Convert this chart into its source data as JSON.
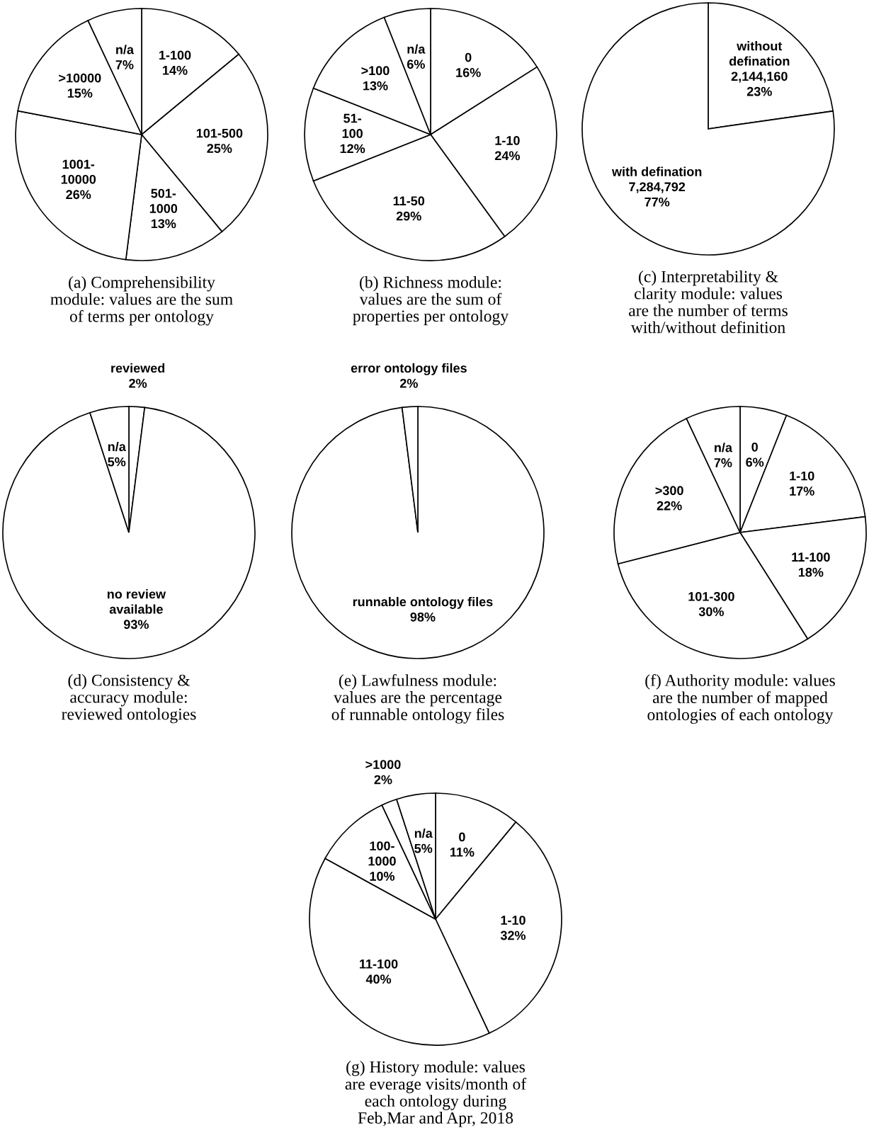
{
  "chart_data": [
    {
      "type": "pie",
      "title": "(a) Comprehensibility\nmodule: values are the sum\nof terms per ontology",
      "categories": [
        "1-100",
        "101-500",
        "501-\n1000",
        "1001-\n10000",
        ">10000",
        "n/a"
      ],
      "values": [
        14,
        25,
        13,
        26,
        15,
        7
      ],
      "value_labels": [
        "14%",
        "25%",
        "13%",
        "26%",
        "15%",
        "7%"
      ],
      "colors": [
        "#ffffff",
        "#ffffff",
        "#ffffff",
        "#ffffff",
        "#ffffff",
        "#ffffff"
      ]
    },
    {
      "type": "pie",
      "title": "(b) Richness module:\nvalues are the sum of\nproperties per ontology",
      "categories": [
        "0",
        "1-10",
        "11-50",
        "51-\n100",
        ">100",
        "n/a"
      ],
      "values": [
        16,
        24,
        29,
        12,
        13,
        6
      ],
      "value_labels": [
        "16%",
        "24%",
        "29%",
        "12%",
        "13%",
        "6%"
      ],
      "colors": [
        "#ffffff",
        "#ffffff",
        "#ffffff",
        "#ffffff",
        "#ffffff",
        "#ffffff"
      ]
    },
    {
      "type": "pie",
      "title": "(c) Interpretability &\nclarity module: values\nare the number of terms\nwith/without definition",
      "categories": [
        "without\ndefination",
        "with defination"
      ],
      "values": [
        2144160,
        7284792
      ],
      "value_labels": [
        "2,144,160\n23%",
        "7,284,792\n77%"
      ],
      "colors": [
        "#ffffff",
        "#ffffff"
      ]
    },
    {
      "type": "pie",
      "title": "(d) Consistency &\naccuracy module:\nreviewed ontologies",
      "categories": [
        "reviewed",
        "no review\navailable",
        "n/a"
      ],
      "values": [
        2,
        93,
        5
      ],
      "value_labels": [
        "2%",
        "93%",
        "5%"
      ],
      "colors": [
        "#ffffff",
        "#ffffff",
        "#ffffff"
      ]
    },
    {
      "type": "pie",
      "title": "(e) Lawfulness module:\nvalues are the percentage\nof runnable ontology files",
      "categories": [
        "runnable ontology files",
        "error ontology files"
      ],
      "values": [
        98,
        2
      ],
      "value_labels": [
        "98%",
        "2%"
      ],
      "colors": [
        "#ffffff",
        "#ffffff"
      ]
    },
    {
      "type": "pie",
      "title": "(f) Authority module: values\nare the number of mapped\nontologies of each ontology",
      "categories": [
        "0",
        "1-10",
        "11-100",
        "101-300",
        ">300",
        "n/a"
      ],
      "values": [
        6,
        17,
        18,
        30,
        22,
        7
      ],
      "value_labels": [
        "6%",
        "17%",
        "18%",
        "30%",
        "22%",
        "7%"
      ],
      "colors": [
        "#ffffff",
        "#ffffff",
        "#ffffff",
        "#ffffff",
        "#ffffff",
        "#ffffff"
      ]
    },
    {
      "type": "pie",
      "title": "(g) History module: values\nare everage visits/month of\neach ontology during\nFeb,Mar and Apr, 2018",
      "categories": [
        "0",
        "1-10",
        "11-100",
        "100-\n1000",
        ">1000",
        "n/a"
      ],
      "values": [
        11,
        32,
        40,
        10,
        2,
        5
      ],
      "value_labels": [
        "11%",
        "32%",
        "40%",
        "10%",
        "2%",
        "5%"
      ],
      "colors": [
        "#ffffff",
        "#ffffff",
        "#ffffff",
        "#ffffff",
        "#ffffff",
        "#ffffff"
      ]
    }
  ]
}
